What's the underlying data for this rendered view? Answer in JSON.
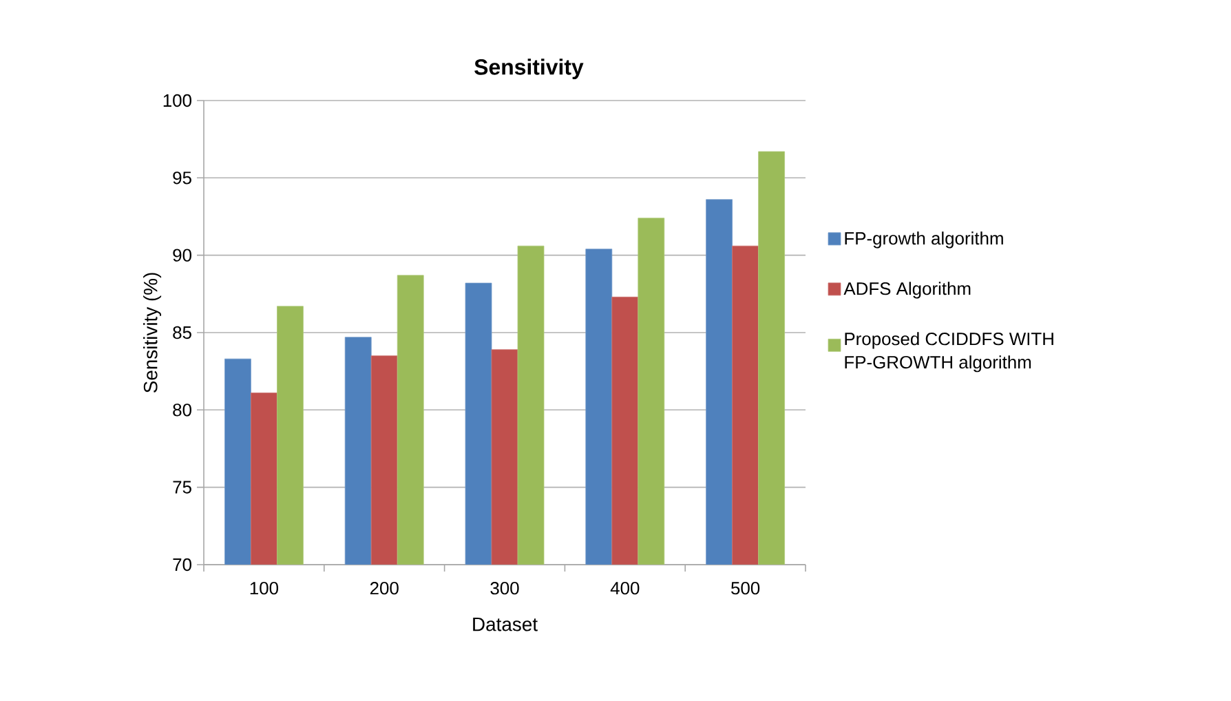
{
  "chart_data": {
    "type": "bar",
    "title": "Sensitivity",
    "xlabel": "Dataset",
    "ylabel": "Sensitivity (%)",
    "categories": [
      "100",
      "200",
      "300",
      "400",
      "500"
    ],
    "series": [
      {
        "name": "FP-growth algorithm",
        "color": "#4f81bd",
        "values": [
          83.3,
          84.7,
          88.2,
          90.4,
          93.6
        ]
      },
      {
        "name": "ADFS Algorithm",
        "color": "#c0504d",
        "values": [
          81.1,
          83.5,
          83.9,
          87.3,
          90.6
        ]
      },
      {
        "name": "Proposed CCIDDFS WITH FP-GROWTH algorithm",
        "color": "#9bbb59",
        "values": [
          86.7,
          88.7,
          90.6,
          92.4,
          96.7
        ]
      }
    ],
    "ylim": [
      70,
      100
    ],
    "yticks": [
      70,
      75,
      80,
      85,
      90,
      95,
      100
    ],
    "grid": "y",
    "legend": "right"
  }
}
